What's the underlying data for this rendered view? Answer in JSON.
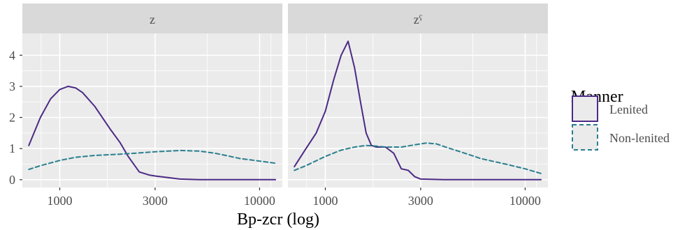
{
  "chart_data": {
    "type": "line",
    "xlabel": "Bp-zcr (log)",
    "ylabel": "",
    "x_scale": "log",
    "xlim": [
      650,
      13000
    ],
    "ylim": [
      -0.25,
      4.7
    ],
    "x_ticks": [
      1000,
      3000,
      10000
    ],
    "x_tick_labels": [
      "1000",
      "3000",
      "10000"
    ],
    "y_ticks": [
      0,
      1,
      2,
      3,
      4
    ],
    "y_tick_labels": [
      "0",
      "1",
      "2",
      "3",
      "4"
    ],
    "grid": true,
    "legend": {
      "title": "Manner",
      "position": "right",
      "entries": [
        {
          "label": "Lenited",
          "color": "#4b2a85",
          "linetype": "solid"
        },
        {
          "label": "Non-lenited",
          "color": "#2a7f8e",
          "linetype": "dashed"
        }
      ]
    },
    "panels": [
      {
        "strip": "z",
        "series": [
          {
            "name": "Lenited",
            "x": [
              700,
              800,
              900,
              1000,
              1100,
              1200,
              1300,
              1500,
              1800,
              2000,
              2200,
              2500,
              2800,
              3000,
              4000,
              5000,
              7000,
              10000,
              12000
            ],
            "values": [
              1.1,
              2.0,
              2.6,
              2.9,
              3.0,
              2.95,
              2.8,
              2.35,
              1.6,
              1.2,
              0.75,
              0.25,
              0.15,
              0.12,
              0.02,
              0.0,
              0.0,
              0.0,
              0.0
            ]
          },
          {
            "name": "Non-lenited",
            "x": [
              700,
              800,
              1000,
              1200,
              1500,
              2000,
              2500,
              3000,
              3500,
              4000,
              5000,
              6000,
              7000,
              8000,
              10000,
              12000
            ],
            "values": [
              0.33,
              0.45,
              0.62,
              0.72,
              0.78,
              0.82,
              0.86,
              0.9,
              0.92,
              0.94,
              0.92,
              0.85,
              0.76,
              0.68,
              0.6,
              0.53
            ]
          }
        ]
      },
      {
        "strip": "zˁ",
        "series": [
          {
            "name": "Lenited",
            "x": [
              700,
              800,
              900,
              1000,
              1100,
              1200,
              1300,
              1400,
              1500,
              1600,
              1700,
              1800,
              2000,
              2200,
              2400,
              2600,
              2800,
              3000,
              4000,
              6000,
              10000,
              12000
            ],
            "values": [
              0.42,
              1.0,
              1.5,
              2.2,
              3.2,
              4.0,
              4.45,
              3.6,
              2.5,
              1.5,
              1.1,
              1.05,
              1.05,
              0.85,
              0.35,
              0.3,
              0.1,
              0.02,
              0.0,
              0.0,
              0.0,
              0.0
            ]
          },
          {
            "name": "Non-lenited",
            "x": [
              700,
              800,
              1000,
              1200,
              1400,
              1600,
              1800,
              2000,
              2400,
              2800,
              3200,
              3600,
              4000,
              5000,
              6000,
              8000,
              10000,
              12000
            ],
            "values": [
              0.3,
              0.45,
              0.75,
              0.95,
              1.05,
              1.1,
              1.08,
              1.05,
              1.05,
              1.12,
              1.18,
              1.15,
              1.05,
              0.85,
              0.68,
              0.5,
              0.35,
              0.2
            ]
          }
        ]
      }
    ]
  }
}
